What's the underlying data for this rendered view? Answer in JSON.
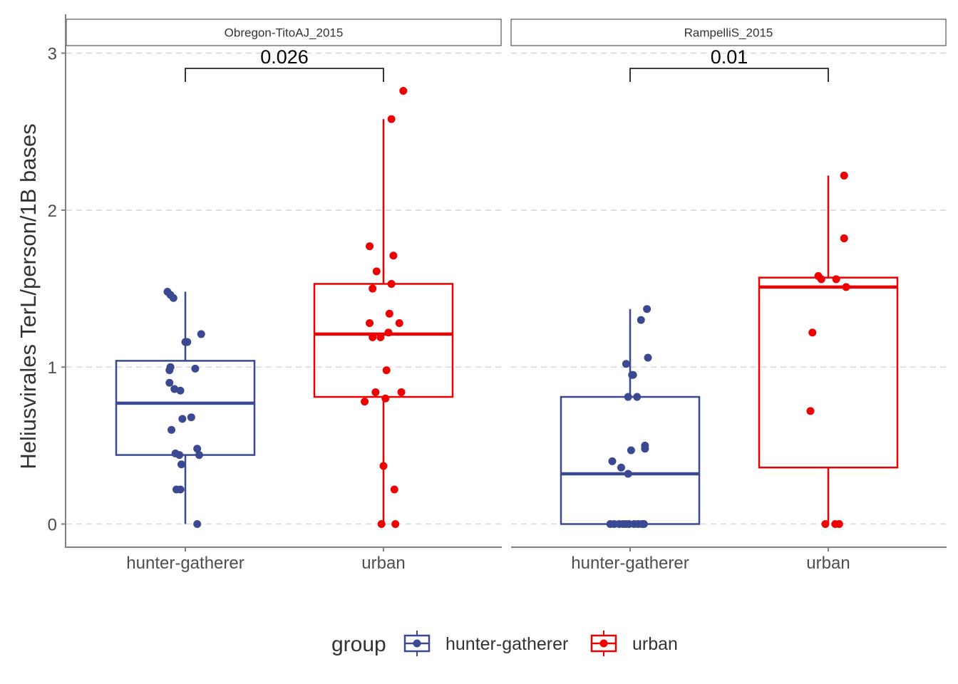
{
  "chart_data": {
    "type": "boxplot",
    "ylabel": "Heliusvirales TerL/person/1B bases",
    "xlabel": "",
    "ylim": [
      -0.13,
      3.05
    ],
    "yticks": [
      0,
      1,
      2,
      3
    ],
    "grid": "horizontal dashed",
    "legend": {
      "title": "group",
      "position": "bottom",
      "entries": [
        {
          "label": "hunter-gatherer",
          "color": "#3B4992"
        },
        {
          "label": "urban",
          "color": "#EE0000"
        }
      ]
    },
    "categories": [
      "hunter-gatherer",
      "urban"
    ],
    "panels": [
      {
        "title": "Obregon-TitoAJ_2015",
        "pvalue": "0.026",
        "series": [
          {
            "name": "hunter-gatherer",
            "color": "#3B4992",
            "box": {
              "lower_whisker": 0.0,
              "q1": 0.44,
              "median": 0.77,
              "q3": 1.04,
              "upper_whisker": 1.48
            },
            "points": [
              [
                -0.18,
                1.48
              ],
              [
                -0.15,
                1.46
              ],
              [
                -0.12,
                1.44
              ],
              [
                0.0,
                1.16
              ],
              [
                0.02,
                1.16
              ],
              [
                0.16,
                1.21
              ],
              [
                -0.16,
                0.98
              ],
              [
                -0.15,
                1.0
              ],
              [
                0.1,
                0.99
              ],
              [
                -0.16,
                0.9
              ],
              [
                -0.11,
                0.86
              ],
              [
                -0.05,
                0.85
              ],
              [
                -0.03,
                0.67
              ],
              [
                0.06,
                0.68
              ],
              [
                -0.14,
                0.6
              ],
              [
                -0.1,
                0.45
              ],
              [
                -0.06,
                0.44
              ],
              [
                0.12,
                0.48
              ],
              [
                0.14,
                0.44
              ],
              [
                -0.04,
                0.38
              ],
              [
                -0.09,
                0.22
              ],
              [
                -0.05,
                0.22
              ],
              [
                0.12,
                0.0
              ]
            ]
          },
          {
            "name": "urban",
            "color": "#EE0000",
            "box": {
              "lower_whisker": 0.0,
              "q1": 0.81,
              "median": 1.21,
              "q3": 1.53,
              "upper_whisker": 2.58
            },
            "points": [
              [
                0.2,
                2.76
              ],
              [
                0.08,
                2.58
              ],
              [
                -0.14,
                1.77
              ],
              [
                0.1,
                1.71
              ],
              [
                -0.07,
                1.61
              ],
              [
                -0.11,
                1.5
              ],
              [
                0.08,
                1.53
              ],
              [
                0.06,
                1.34
              ],
              [
                -0.14,
                1.28
              ],
              [
                0.16,
                1.28
              ],
              [
                -0.11,
                1.19
              ],
              [
                -0.03,
                1.19
              ],
              [
                0.05,
                1.22
              ],
              [
                0.03,
                0.98
              ],
              [
                -0.08,
                0.84
              ],
              [
                0.02,
                0.8
              ],
              [
                0.18,
                0.84
              ],
              [
                -0.19,
                0.78
              ],
              [
                0.0,
                0.37
              ],
              [
                0.11,
                0.22
              ],
              [
                -0.02,
                0.0
              ],
              [
                0.12,
                0.0
              ]
            ]
          }
        ]
      },
      {
        "title": "RampelliS_2015",
        "pvalue": "0.01",
        "series": [
          {
            "name": "hunter-gatherer",
            "color": "#3B4992",
            "box": {
              "lower_whisker": 0.0,
              "q1": 0.0,
              "median": 0.32,
              "q3": 0.81,
              "upper_whisker": 1.37
            },
            "points": [
              [
                0.17,
                1.37
              ],
              [
                0.11,
                1.3
              ],
              [
                0.18,
                1.06
              ],
              [
                -0.04,
                1.02
              ],
              [
                0.02,
                0.95
              ],
              [
                0.03,
                0.95
              ],
              [
                -0.02,
                0.81
              ],
              [
                0.07,
                0.81
              ],
              [
                0.15,
                0.5
              ],
              [
                0.15,
                0.48
              ],
              [
                0.01,
                0.47
              ],
              [
                -0.18,
                0.4
              ],
              [
                -0.09,
                0.36
              ],
              [
                -0.02,
                0.32
              ],
              [
                -0.2,
                0.0
              ],
              [
                -0.16,
                0.0
              ],
              [
                -0.11,
                0.0
              ],
              [
                -0.07,
                0.0
              ],
              [
                -0.04,
                0.0
              ],
              [
                -0.01,
                0.0
              ],
              [
                0.04,
                0.0
              ],
              [
                0.08,
                0.0
              ],
              [
                0.12,
                0.0
              ],
              [
                0.14,
                0.0
              ]
            ]
          },
          {
            "name": "urban",
            "color": "#EE0000",
            "box": {
              "lower_whisker": 0.0,
              "q1": 0.36,
              "median": 1.51,
              "q3": 1.57,
              "upper_whisker": 2.22
            },
            "points": [
              [
                0.16,
                2.22
              ],
              [
                0.16,
                1.82
              ],
              [
                -0.1,
                1.58
              ],
              [
                -0.07,
                1.56
              ],
              [
                0.08,
                1.56
              ],
              [
                0.18,
                1.51
              ],
              [
                -0.16,
                1.22
              ],
              [
                -0.18,
                0.72
              ],
              [
                -0.03,
                0.0
              ],
              [
                0.07,
                0.0
              ],
              [
                0.11,
                0.0
              ]
            ]
          }
        ]
      }
    ]
  }
}
